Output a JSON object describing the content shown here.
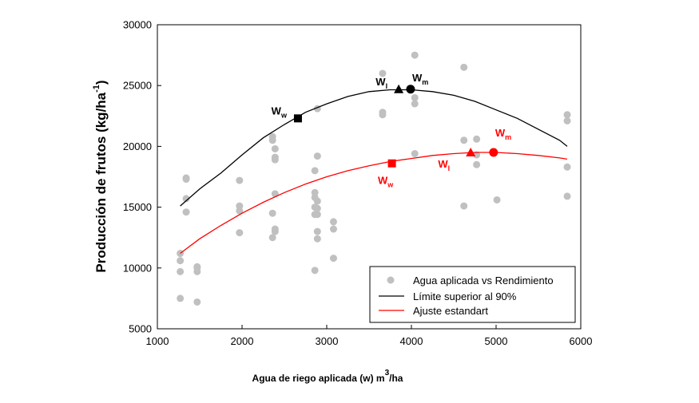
{
  "chart_data": {
    "type": "scatter",
    "xlabel": "Agua de riego aplicada (w) m",
    "xlabel_sup": "3",
    "xlabel_suffix": "/ha",
    "ylabel": "Producción de frutos (kg/ha",
    "ylabel_sup": "-1",
    "ylabel_suffix": ")",
    "xlim": [
      1000,
      6000
    ],
    "ylim": [
      5000,
      30000
    ],
    "x_ticks": [
      1000,
      2000,
      3000,
      4000,
      5000,
      6000
    ],
    "y_ticks": [
      5000,
      10000,
      15000,
      20000,
      25000,
      30000
    ],
    "grid": false,
    "legend_position": "bottom-right",
    "colors": {
      "scatter": "#c0c0c0",
      "upper": "#000000",
      "fit": "#ff0000",
      "axis": "#000000"
    },
    "series": [
      {
        "name": "Agua aplicada vs Rendimiento",
        "kind": "scatter",
        "points": [
          [
            1270,
            7500
          ],
          [
            1270,
            9700
          ],
          [
            1270,
            10600
          ],
          [
            1270,
            11200
          ],
          [
            1340,
            14600
          ],
          [
            1340,
            15700
          ],
          [
            1340,
            17300
          ],
          [
            1340,
            17400
          ],
          [
            1470,
            7200
          ],
          [
            1470,
            9700
          ],
          [
            1470,
            10000
          ],
          [
            1470,
            10100
          ],
          [
            1970,
            12900
          ],
          [
            1970,
            14700
          ],
          [
            1970,
            15100
          ],
          [
            1970,
            17200
          ],
          [
            2360,
            12500
          ],
          [
            2360,
            14500
          ],
          [
            2360,
            20500
          ],
          [
            2360,
            20800
          ],
          [
            2390,
            13000
          ],
          [
            2390,
            13200
          ],
          [
            2390,
            16100
          ],
          [
            2390,
            18900
          ],
          [
            2390,
            19100
          ],
          [
            2390,
            19800
          ],
          [
            2860,
            9800
          ],
          [
            2860,
            14400
          ],
          [
            2860,
            15000
          ],
          [
            2860,
            15800
          ],
          [
            2860,
            16200
          ],
          [
            2860,
            18000
          ],
          [
            2890,
            12400
          ],
          [
            2890,
            13000
          ],
          [
            2890,
            14400
          ],
          [
            2890,
            14900
          ],
          [
            2890,
            15500
          ],
          [
            2890,
            19200
          ],
          [
            2890,
            23100
          ],
          [
            3080,
            10800
          ],
          [
            3080,
            13200
          ],
          [
            3080,
            13800
          ],
          [
            3660,
            22600
          ],
          [
            3660,
            22800
          ],
          [
            3660,
            26000
          ],
          [
            4040,
            19400
          ],
          [
            4040,
            23500
          ],
          [
            4040,
            24000
          ],
          [
            4040,
            27500
          ],
          [
            4620,
            15100
          ],
          [
            4620,
            20500
          ],
          [
            4620,
            26500
          ],
          [
            4770,
            18500
          ],
          [
            4770,
            19300
          ],
          [
            4770,
            20600
          ],
          [
            5010,
            15600
          ],
          [
            5840,
            15900
          ],
          [
            5840,
            18300
          ],
          [
            5840,
            22100
          ],
          [
            5840,
            22600
          ]
        ]
      },
      {
        "name": "Límite superior al 90%",
        "kind": "line",
        "x": [
          1270,
          1500,
          1750,
          2000,
          2250,
          2500,
          2750,
          3000,
          3250,
          3500,
          3750,
          4000,
          4250,
          4500,
          4750,
          5000,
          5250,
          5500,
          5750,
          5840
        ],
        "y": [
          15100,
          16500,
          17800,
          19300,
          20700,
          21800,
          22800,
          23500,
          24100,
          24500,
          24650,
          24650,
          24500,
          24200,
          23700,
          23000,
          22300,
          21400,
          20500,
          20000
        ]
      },
      {
        "name": "Ajuste estandart",
        "kind": "line",
        "x": [
          1270,
          1500,
          1750,
          2000,
          2250,
          2500,
          2750,
          3000,
          3250,
          3500,
          3750,
          4000,
          4250,
          4500,
          4750,
          5000,
          5250,
          5500,
          5750,
          5840
        ],
        "y": [
          11200,
          12400,
          13500,
          14500,
          15400,
          16200,
          16900,
          17500,
          18000,
          18400,
          18750,
          19000,
          19250,
          19400,
          19500,
          19500,
          19400,
          19250,
          19050,
          18950
        ]
      }
    ],
    "markers": [
      {
        "series": "upper",
        "shape": "square",
        "x": 2660,
        "y": 22300,
        "label": "W",
        "sub": "w",
        "label_side": "upper-left"
      },
      {
        "series": "upper",
        "shape": "triangle",
        "x": 3850,
        "y": 24700,
        "label": "W",
        "sub": "l",
        "label_side": "upper-left"
      },
      {
        "series": "upper",
        "shape": "circle",
        "x": 3990,
        "y": 24700,
        "label": "W",
        "sub": "m",
        "label_side": "upper-center"
      },
      {
        "series": "fit",
        "shape": "square",
        "x": 3770,
        "y": 18600,
        "label": "W",
        "sub": "w",
        "label_side": "below"
      },
      {
        "series": "fit",
        "shape": "triangle",
        "x": 4700,
        "y": 19500,
        "label": "W",
        "sub": "l",
        "label_side": "lower-left"
      },
      {
        "series": "fit",
        "shape": "circle",
        "x": 4970,
        "y": 19500,
        "label": "W",
        "sub": "m",
        "label_side": "upper-right"
      }
    ]
  }
}
